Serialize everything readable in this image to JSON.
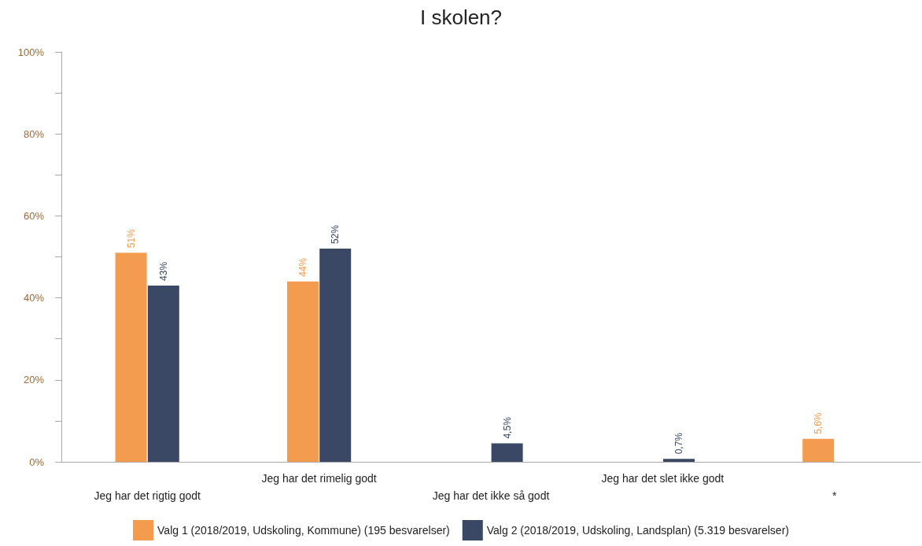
{
  "chart_data": {
    "type": "bar",
    "title": "I skolen?",
    "categories": [
      "Jeg har det rigtig godt",
      "Jeg har det rimelig godt",
      "Jeg har det ikke så godt",
      "Jeg har det slet ikke godt",
      "*"
    ],
    "series": [
      {
        "name": "Valg 1 (2018/2019, Udskoling, Kommune) (195 besvarelser)",
        "color": "#f39c4f",
        "values": [
          51,
          44,
          0,
          0,
          5.6
        ],
        "value_labels": [
          "51%",
          "44%",
          null,
          null,
          "5,6%"
        ]
      },
      {
        "name": "Valg 2 (2018/2019, Udskoling, Landsplan) (5.319 besvarelser)",
        "color": "#3a4865",
        "values": [
          43,
          52,
          4.5,
          0.7,
          0
        ],
        "value_labels": [
          "43%",
          "52%",
          "4,5%",
          "0,7%",
          null
        ]
      }
    ],
    "ylim": [
      0,
      100
    ],
    "yticks": [
      {
        "value": 0,
        "label": "0%"
      },
      {
        "value": 10,
        "label": null
      },
      {
        "value": 20,
        "label": "20%"
      },
      {
        "value": 30,
        "label": null
      },
      {
        "value": 40,
        "label": "40%"
      },
      {
        "value": 50,
        "label": null
      },
      {
        "value": 60,
        "label": "60%"
      },
      {
        "value": 70,
        "label": null
      },
      {
        "value": 80,
        "label": "80%"
      },
      {
        "value": 90,
        "label": null
      },
      {
        "value": 100,
        "label": "100%"
      }
    ],
    "grid": false,
    "legend": "bottom"
  }
}
